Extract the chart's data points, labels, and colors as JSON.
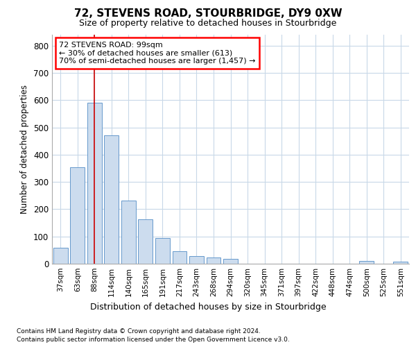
{
  "title": "72, STEVENS ROAD, STOURBRIDGE, DY9 0XW",
  "subtitle": "Size of property relative to detached houses in Stourbridge",
  "xlabel": "Distribution of detached houses by size in Stourbridge",
  "ylabel": "Number of detached properties",
  "footnote1": "Contains HM Land Registry data © Crown copyright and database right 2024.",
  "footnote2": "Contains public sector information licensed under the Open Government Licence v3.0.",
  "annotation_line1": "72 STEVENS ROAD: 99sqm",
  "annotation_line2": "← 30% of detached houses are smaller (613)",
  "annotation_line3": "70% of semi-detached houses are larger (1,457) →",
  "bar_color": "#ccdcee",
  "bar_edge_color": "#6699cc",
  "grid_color": "#c8d8e8",
  "vline_color": "#cc0000",
  "vline_x": 2.0,
  "categories": [
    "37sqm",
    "63sqm",
    "88sqm",
    "114sqm",
    "140sqm",
    "165sqm",
    "191sqm",
    "217sqm",
    "243sqm",
    "268sqm",
    "294sqm",
    "320sqm",
    "345sqm",
    "371sqm",
    "397sqm",
    "422sqm",
    "448sqm",
    "474sqm",
    "500sqm",
    "525sqm",
    "551sqm"
  ],
  "values": [
    58,
    355,
    590,
    470,
    232,
    163,
    95,
    47,
    27,
    22,
    18,
    0,
    0,
    0,
    0,
    0,
    0,
    0,
    10,
    0,
    7
  ],
  "ylim": [
    0,
    840
  ],
  "yticks": [
    0,
    100,
    200,
    300,
    400,
    500,
    600,
    700,
    800
  ]
}
